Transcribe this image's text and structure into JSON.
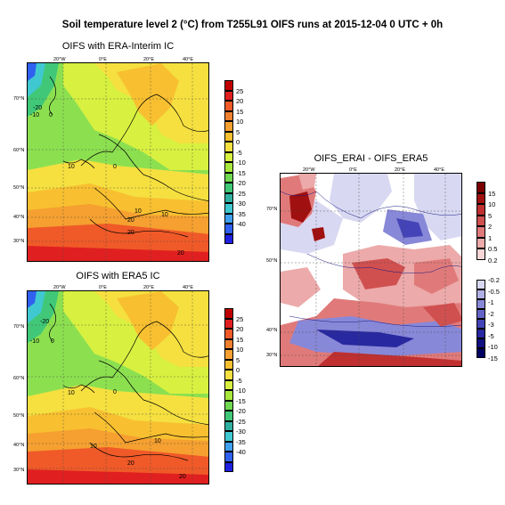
{
  "title": "Soil temperature level 2 (°C) from T255L91 OIFS runs at 2015-12-04 0 UTC + 0h",
  "panels": [
    {
      "title": "OIFS with ERA-Interim IC"
    },
    {
      "title": "OIFS with ERA5 IC"
    },
    {
      "title": "OIFS_ERAI - OIFS_ERA5"
    }
  ],
  "lon_labels": [
    "20°W",
    "0°E",
    "20°E",
    "40°E"
  ],
  "lat_labels": [
    "70°N",
    "60°N",
    "50°N",
    "40°N",
    "30°N"
  ],
  "diff_lat_labels": [
    "70°N",
    "50°N",
    "40°N",
    "30°N"
  ],
  "contour_labels": {
    "erai": [
      "-20",
      "-10",
      "0",
      "10",
      "0",
      "20",
      "10",
      "10",
      "20",
      "20"
    ],
    "era5": [
      "-20",
      "-10",
      "0",
      "10",
      "0",
      "10",
      "20",
      "20",
      "10"
    ]
  },
  "temp_colorbar": {
    "labels": [
      "25",
      "20",
      "15",
      "10",
      "5",
      "0",
      "-5",
      "-10",
      "-15",
      "-20",
      "-25",
      "-30",
      "-35",
      "-40"
    ],
    "colors": [
      "#c00000",
      "#e02020",
      "#f05a28",
      "#f08030",
      "#f5a030",
      "#f8c030",
      "#f5e040",
      "#d8f040",
      "#a8e83c",
      "#70d850",
      "#40c878",
      "#30b0a0",
      "#40c8d0",
      "#40a0f0",
      "#3060f0",
      "#2020e0"
    ]
  },
  "diff_colorbar_pos": {
    "labels": [
      "15",
      "10",
      "5",
      "2",
      "1",
      "0.5",
      "0.2"
    ],
    "colors": [
      "#7a0000",
      "#a01010",
      "#c03030",
      "#d05050",
      "#e07a7a",
      "#ecaaaa",
      "#f6d6d6"
    ]
  },
  "diff_colorbar_neg": {
    "labels": [
      "-0.2",
      "-0.5",
      "-1",
      "-2",
      "-3",
      "-5",
      "-10",
      "-15"
    ],
    "colors": [
      "#d8d8f2",
      "#b0b0e6",
      "#8888d8",
      "#6464c8",
      "#4444b8",
      "#2828a0",
      "#101080",
      "#000060"
    ]
  }
}
